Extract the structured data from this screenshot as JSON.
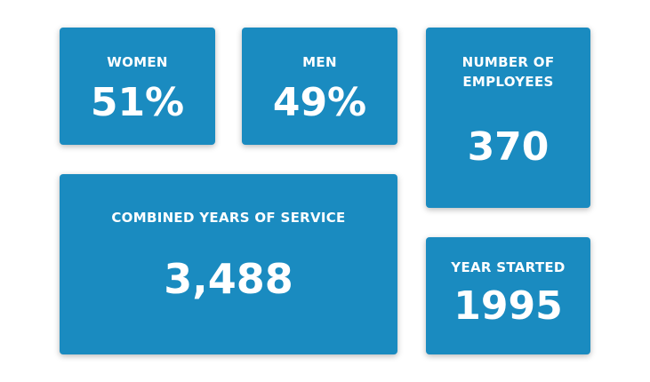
{
  "stats": {
    "women": {
      "label": "WOMEN",
      "value": "51%"
    },
    "men": {
      "label": "MEN",
      "value": "49%"
    },
    "employees": {
      "label_line1": "NUMBER OF",
      "label_line2": "EMPLOYEES",
      "value": "370"
    },
    "service": {
      "label": "COMBINED YEARS OF SERVICE",
      "value": "3,488"
    },
    "year": {
      "label": "YEAR STARTED",
      "value": "1995"
    }
  },
  "colors": {
    "card_background": "#1a8bc0",
    "text": "#ffffff",
    "page_background": "#ffffff"
  }
}
